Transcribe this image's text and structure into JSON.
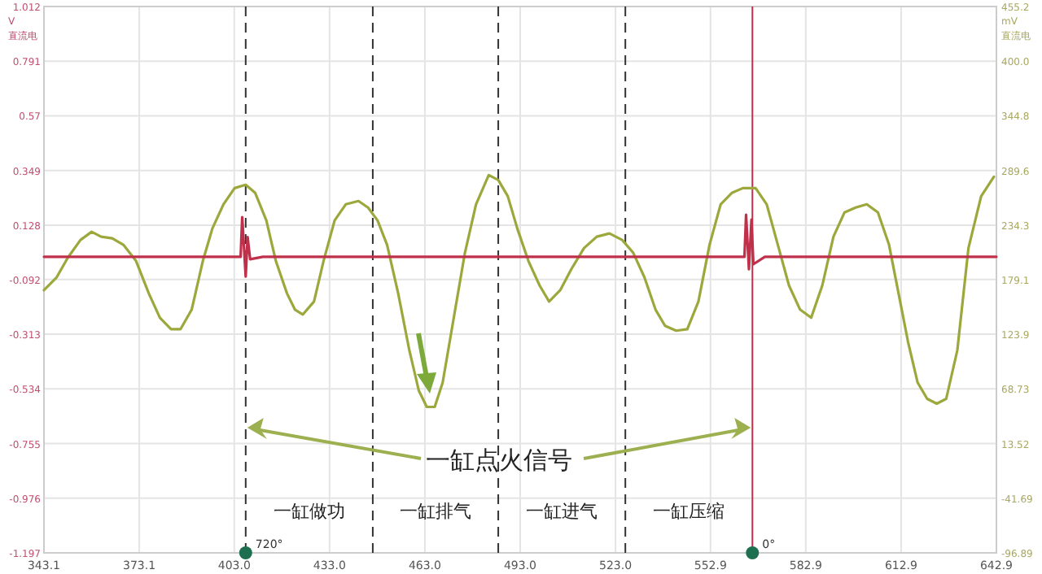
{
  "chart_data": {
    "type": "line",
    "ylabel": "V 直流电",
    "y2label": "mV 直流电",
    "xlim": [
      343.1,
      642.9
    ],
    "xticks": [
      {
        "value": 343.1,
        "label": "343.1"
      },
      {
        "value": 373.1,
        "label": "373.1"
      },
      {
        "value": 403.0,
        "label": "403.0"
      },
      {
        "value": 433.0,
        "label": "433.0"
      },
      {
        "value": 463.0,
        "label": "463.0"
      },
      {
        "value": 493.0,
        "label": "493.0"
      },
      {
        "value": 523.0,
        "label": "523.0"
      },
      {
        "value": 552.9,
        "label": "552.9"
      },
      {
        "value": 582.9,
        "label": "582.9"
      },
      {
        "value": 612.9,
        "label": "612.9"
      },
      {
        "value": 642.9,
        "label": "642.9"
      }
    ],
    "ylim": [
      -1.197,
      1.012
    ],
    "yticks": [
      1.012,
      0.791,
      {
        "value": 0.57,
        "label": "0.57"
      },
      0.349,
      0.128,
      -0.092,
      -0.313,
      -0.534,
      -0.755,
      -0.976,
      -1.197
    ],
    "y2lim": [
      -96.89,
      455.2
    ],
    "y2ticks": [
      455.2,
      {
        "value": 400.0,
        "label": "400.0"
      },
      344.8,
      289.6,
      234.3,
      179.1,
      123.9,
      68.73,
      13.52,
      -41.69,
      -96.89
    ],
    "grid": true,
    "series": [
      {
        "color": "#9ca83c",
        "axis": "y2",
        "x": [
          343.1,
          347.1,
          350.6,
          354.6,
          358.1,
          361.1,
          364.6,
          368.1,
          372.1,
          376.1,
          379.6,
          383.1,
          386.1,
          389.6,
          393.1,
          396.1,
          399.6,
          403.1,
          406.6,
          409.6,
          413.1,
          416.1,
          419.6,
          422.1,
          424.6,
          428.1,
          431.1,
          434.6,
          438.1,
          442.1,
          445.1,
          448.1,
          451.1,
          454.6,
          458.1,
          461.1,
          463.6,
          466.1,
          468.6,
          472.1,
          475.6,
          479.1,
          483.1,
          486.1,
          489.1,
          492.1,
          495.6,
          499.1,
          502.1,
          505.6,
          509.1,
          513.1,
          517.1,
          521.1,
          525.1,
          528.6,
          532.1,
          535.6,
          538.6,
          542.1,
          545.6,
          549.1,
          552.6,
          556.1,
          559.6,
          563.1,
          567.1,
          570.6,
          574.1,
          577.6,
          581.1,
          584.6,
          588.1,
          591.6,
          595.1,
          598.6,
          602.1,
          605.6,
          609.1,
          612.1,
          615.1,
          618.1,
          621.1,
          624.1,
          627.1,
          630.6,
          634.1,
          638.1,
          642.1
        ],
        "values": [
          168.5,
          181.6,
          201.3,
          219.3,
          227.5,
          222.6,
          221.0,
          214.4,
          198.0,
          165.3,
          140.7,
          129.2,
          129.2,
          148.9,
          198.0,
          230.8,
          255.3,
          271.7,
          275.0,
          266.8,
          239.0,
          198.0,
          165.3,
          148.9,
          144.0,
          157.1,
          198.0,
          239.0,
          255.3,
          258.6,
          252.1,
          239.0,
          214.4,
          165.3,
          107.9,
          67.0,
          50.6,
          50.6,
          75.2,
          140.7,
          206.2,
          255.3,
          284.8,
          279.9,
          263.5,
          230.8,
          198.0,
          173.4,
          157.1,
          168.5,
          189.8,
          211.1,
          222.6,
          225.9,
          219.3,
          206.2,
          181.6,
          148.9,
          132.5,
          127.6,
          129.2,
          157.1,
          214.4,
          255.3,
          266.8,
          271.7,
          271.7,
          255.3,
          214.4,
          173.4,
          148.9,
          140.7,
          173.4,
          222.6,
          247.2,
          252.1,
          255.3,
          247.2,
          214.4,
          165.3,
          116.1,
          75.2,
          58.8,
          53.9,
          58.8,
          107.9,
          211.1,
          263.5,
          283.2
        ]
      },
      {
        "color": "#c0304a",
        "x": [
          343.1,
          405.0,
          405.5,
          406.6,
          407.2,
          408.0,
          412.0,
          563.6,
          564.1,
          565.0,
          565.8,
          566.4,
          570.0,
          642.9
        ],
        "values": [
          0,
          0,
          0.16,
          -0.08,
          0.08,
          -0.01,
          0,
          0,
          0.17,
          -0.05,
          0.15,
          -0.03,
          0,
          0
        ]
      },
      {
        "type": "scatter",
        "color": "#1e6e50",
        "marker": "circle",
        "x": [
          406.6,
          566.1
        ],
        "values": [
          -1.197,
          -1.197
        ]
      }
    ],
    "ref_lines": [
      {
        "axis": "x",
        "value": 406.6,
        "color": "#333333",
        "line_style": "dashed"
      },
      {
        "axis": "x",
        "value": 446.6,
        "color": "#333333",
        "line_style": "dashed"
      },
      {
        "axis": "x",
        "value": 486.1,
        "color": "#333333",
        "line_style": "dashed"
      },
      {
        "axis": "x",
        "value": 526.1,
        "color": "#333333",
        "line_style": "dashed"
      },
      {
        "axis": "x",
        "value": 566.1,
        "color": "#c0304a",
        "line_style": "solid"
      }
    ],
    "annotations": [
      "一缸做功",
      "一缸排气",
      "一缸进气",
      "一缸压缩",
      "一缸点火信号",
      {
        "text": "720°",
        "x": 406.6,
        "y": -1.197
      },
      {
        "text": "0°",
        "x": 566.1,
        "y": -1.197
      }
    ]
  }
}
